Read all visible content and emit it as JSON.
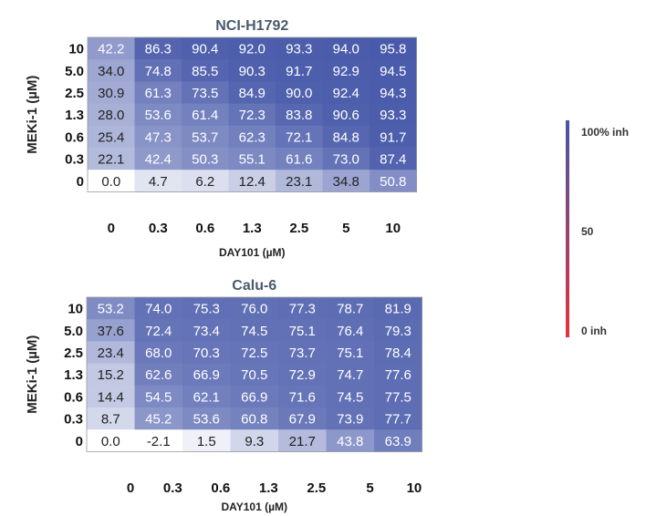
{
  "chart_data": [
    {
      "type": "heatmap",
      "title": "NCI-H1792",
      "xlabel": "DAY101 (µM)",
      "ylabel": "MEKi-1 (µM)",
      "x_categories": [
        "0",
        "0.3",
        "0.6",
        "1.3",
        "2.5",
        "5",
        "10"
      ],
      "y_categories": [
        "10",
        "5.0",
        "2.5",
        "1.3",
        "0.6",
        "0.3",
        "0"
      ],
      "values": [
        [
          "42.2",
          "86.3",
          "90.4",
          "92.0",
          "93.3",
          "94.0",
          "95.8"
        ],
        [
          "34.0",
          "74.8",
          "85.5",
          "90.3",
          "91.7",
          "92.9",
          "94.5"
        ],
        [
          "30.9",
          "61.3",
          "73.5",
          "84.9",
          "90.0",
          "92.4",
          "94.3"
        ],
        [
          "28.0",
          "53.6",
          "61.4",
          "72.3",
          "83.8",
          "90.6",
          "93.3"
        ],
        [
          "25.4",
          "47.3",
          "53.7",
          "62.3",
          "72.1",
          "84.8",
          "91.7"
        ],
        [
          "22.1",
          "42.4",
          "50.3",
          "55.1",
          "61.6",
          "73.0",
          "87.4"
        ],
        [
          "0.0",
          "4.7",
          "6.2",
          "12.4",
          "23.1",
          "34.8",
          "50.8"
        ]
      ]
    },
    {
      "type": "heatmap",
      "title": "Calu-6",
      "xlabel": "DAY101 (µM)",
      "ylabel": "MEKi-1 (µM)",
      "x_categories": [
        "0",
        "0.3",
        "0.6",
        "1.3",
        "2.5",
        "5",
        "10"
      ],
      "y_categories": [
        "10",
        "5.0",
        "2.5",
        "1.3",
        "0.6",
        "0.3",
        "0"
      ],
      "values": [
        [
          "53.2",
          "74.0",
          "75.3",
          "76.0",
          "77.3",
          "78.7",
          "81.9"
        ],
        [
          "37.6",
          "72.4",
          "73.4",
          "74.5",
          "75.1",
          "76.4",
          "79.3"
        ],
        [
          "23.4",
          "68.0",
          "70.3",
          "72.5",
          "73.7",
          "75.1",
          "78.4"
        ],
        [
          "15.2",
          "62.6",
          "66.9",
          "70.5",
          "72.9",
          "74.7",
          "77.6"
        ],
        [
          "14.4",
          "54.5",
          "62.1",
          "66.9",
          "71.6",
          "74.5",
          "77.5"
        ],
        [
          "8.7",
          "45.2",
          "53.6",
          "60.8",
          "67.9",
          "73.9",
          "77.7"
        ],
        [
          "0.0",
          "-2.1",
          "1.5",
          "9.3",
          "21.7",
          "43.8",
          "63.9"
        ]
      ]
    }
  ],
  "colorbar": {
    "top_label": "100% inh",
    "mid_label": "50",
    "bottom_label": "0 inh",
    "color_high": "#4456a8",
    "color_low": "#e8303a",
    "cell_color_high": "#4456a8",
    "cell_color_low": "#ffffff"
  }
}
